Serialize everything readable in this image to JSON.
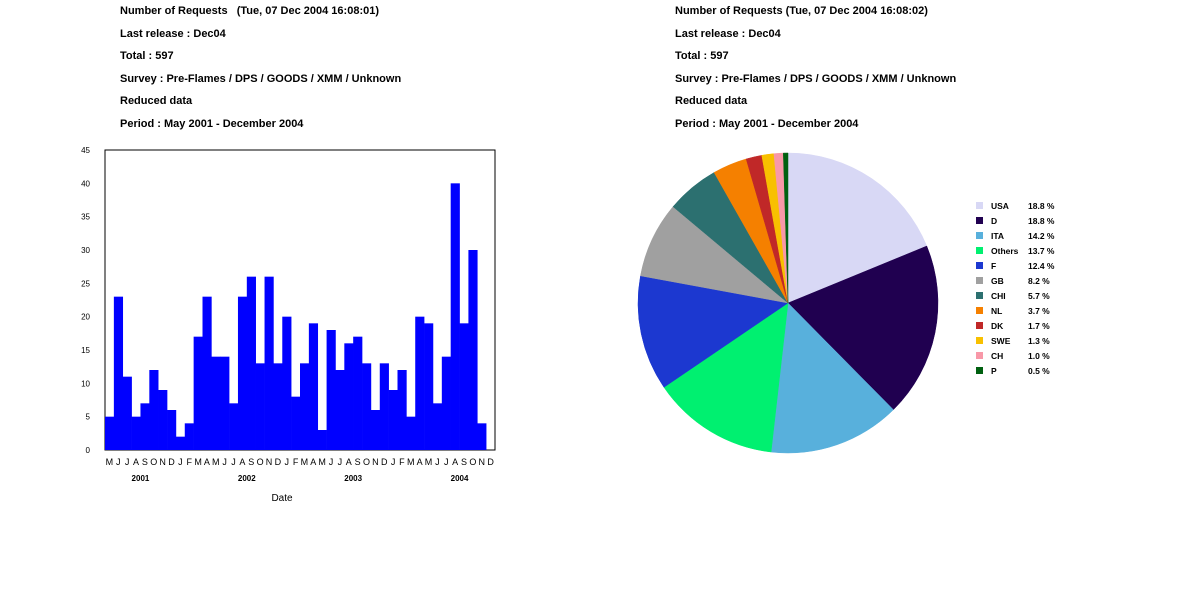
{
  "left_panel": {
    "title": "Number of Requests   (Tue, 07 Dec 2004 16:08:01)",
    "release": "Last release : Dec04",
    "total": "Total : 597",
    "survey": "Survey : Pre-Flames / DPS / GOODS / XMM / Unknown",
    "data_type": "Reduced data",
    "period": "Period : May 2001 - December 2004"
  },
  "right_panel": {
    "title": "Number of Requests (Tue, 07 Dec 2004 16:08:02)",
    "release": "Last release : Dec04",
    "total": "Total : 597",
    "survey": "Survey : Pre-Flames / DPS / GOODS / XMM / Unknown",
    "data_type": "Reduced data",
    "period": "Period : May 2001 - December 2004"
  },
  "chart_data": [
    {
      "type": "bar",
      "xlabel": "Date",
      "ylabel": "",
      "ylim": [
        0,
        45
      ],
      "yticks": [
        0,
        5,
        10,
        15,
        20,
        25,
        30,
        35,
        40,
        45
      ],
      "grid": false,
      "bar_color": "#0000ff",
      "month_labels": [
        "M",
        "J",
        "J",
        "A",
        "S",
        "O",
        "N",
        "D",
        "J",
        "F",
        "M",
        "A",
        "M",
        "J",
        "J",
        "A",
        "S",
        "O",
        "N",
        "D",
        "J",
        "F",
        "M",
        "A",
        "M",
        "J",
        "J",
        "A",
        "S",
        "O",
        "N",
        "D",
        "J",
        "F",
        "M",
        "A",
        "M",
        "J",
        "J",
        "A",
        "S",
        "O",
        "N",
        "D"
      ],
      "year_labels": [
        {
          "label": "2001",
          "month_index": 3.5
        },
        {
          "label": "2002",
          "month_index": 15.5
        },
        {
          "label": "2003",
          "month_index": 27.5
        },
        {
          "label": "2004",
          "month_index": 39.5
        }
      ],
      "categories": [
        "May 2001",
        "Jun 2001",
        "Jul 2001",
        "Aug 2001",
        "Sep 2001",
        "Oct 2001",
        "Nov 2001",
        "Dec 2001",
        "Jan 2002",
        "Feb 2002",
        "Mar 2002",
        "Apr 2002",
        "May 2002",
        "Jun 2002",
        "Jul 2002",
        "Aug 2002",
        "Sep 2002",
        "Oct 2002",
        "Nov 2002",
        "Dec 2002",
        "Jan 2003",
        "Feb 2003",
        "Mar 2003",
        "Apr 2003",
        "May 2003",
        "Jun 2003",
        "Jul 2003",
        "Aug 2003",
        "Sep 2003",
        "Oct 2003",
        "Nov 2003",
        "Dec 2003",
        "Jan 2004",
        "Feb 2004",
        "Mar 2004",
        "Apr 2004",
        "May 2004",
        "Jun 2004",
        "Jul 2004",
        "Aug 2004",
        "Sep 2004",
        "Oct 2004",
        "Nov 2004",
        "Dec 2004"
      ],
      "values": [
        5,
        23,
        11,
        5,
        7,
        12,
        9,
        6,
        2,
        4,
        17,
        23,
        14,
        14,
        7,
        23,
        26,
        13,
        26,
        13,
        20,
        8,
        13,
        19,
        3,
        18,
        12,
        16,
        17,
        13,
        6,
        13,
        9,
        12,
        5,
        20,
        19,
        7,
        14,
        40,
        19,
        30,
        4,
        0
      ]
    },
    {
      "type": "pie",
      "labels": [
        "USA",
        "D",
        "ITA",
        "Others",
        "F",
        "GB",
        "CHI",
        "NL",
        "DK",
        "SWE",
        "CH",
        "P"
      ],
      "percent_labels": [
        "18.8 %",
        "18.8 %",
        "14.2 %",
        "13.7 %",
        "12.4 %",
        "8.2 %",
        "5.7 %",
        "3.7 %",
        "1.7 %",
        "1.3 %",
        "1.0 %",
        "0.5 %"
      ],
      "values": [
        18.8,
        18.8,
        14.2,
        13.7,
        12.4,
        8.2,
        5.7,
        3.7,
        1.7,
        1.3,
        1.0,
        0.5
      ],
      "colors": [
        "#d8d8f5",
        "#200050",
        "#58b0dc",
        "#00f070",
        "#1c38d0",
        "#a0a0a0",
        "#2c7070",
        "#f58000",
        "#c02828",
        "#f8c000",
        "#f898a8",
        "#006010"
      ],
      "legend_position": "right"
    }
  ]
}
